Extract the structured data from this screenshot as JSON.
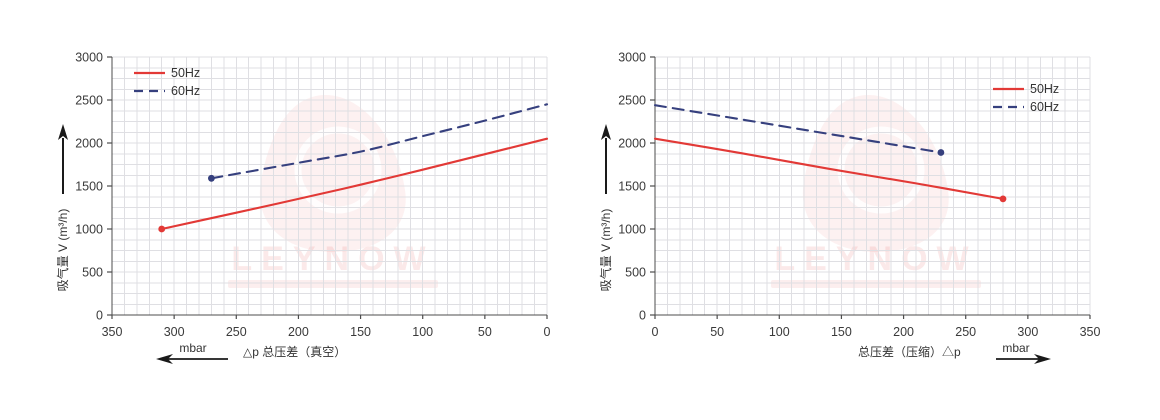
{
  "watermark": {
    "brand": "LEYNOW"
  },
  "layout_colors": {
    "grid": "#dfdfe3",
    "axis": "#4c4c4c",
    "arrow": "#1a1a1a"
  },
  "chart_data": [
    {
      "type": "line",
      "title": "",
      "ylabel": "吸气量 V (m³/h)",
      "xlabel": "△p  总压差（真空）",
      "xunit": "mbar",
      "xunit_arrow": "left",
      "x_direction": "reversed",
      "xlim": [
        350,
        0
      ],
      "ylim": [
        0,
        3000
      ],
      "x_ticks": [
        350,
        300,
        250,
        200,
        150,
        100,
        50,
        0
      ],
      "y_ticks": [
        0,
        500,
        1000,
        1500,
        2000,
        2500,
        3000
      ],
      "grid": true,
      "legend_position": "top-left",
      "series": [
        {
          "name": "50Hz",
          "color": "#e23936",
          "dash": false,
          "marker": "start",
          "points": [
            [
              310,
              1000
            ],
            [
              250,
              1190
            ],
            [
              200,
              1350
            ],
            [
              150,
              1515
            ],
            [
              100,
              1690
            ],
            [
              50,
              1870
            ],
            [
              0,
              2050
            ]
          ]
        },
        {
          "name": "60Hz",
          "color": "#36407e",
          "dash": true,
          "marker": "start",
          "points": [
            [
              270,
              1590
            ],
            [
              200,
              1770
            ],
            [
              150,
              1900
            ],
            [
              100,
              2080
            ],
            [
              50,
              2260
            ],
            [
              0,
              2450
            ]
          ]
        }
      ]
    },
    {
      "type": "line",
      "title": "",
      "ylabel": "吸气量 V (m³/h)",
      "xlabel": "总压差（压缩）△p",
      "xunit": "mbar",
      "xunit_arrow": "right",
      "x_direction": "normal",
      "xlim": [
        0,
        350
      ],
      "ylim": [
        0,
        3000
      ],
      "x_ticks": [
        0,
        50,
        100,
        150,
        200,
        250,
        300,
        350
      ],
      "y_ticks": [
        0,
        500,
        1000,
        1500,
        2000,
        2500,
        3000
      ],
      "grid": true,
      "legend_position": "top-right",
      "series": [
        {
          "name": "50Hz",
          "color": "#e23936",
          "dash": false,
          "marker": "end",
          "points": [
            [
              0,
              2050
            ],
            [
              70,
              1880
            ],
            [
              140,
              1700
            ],
            [
              210,
              1530
            ],
            [
              280,
              1350
            ]
          ]
        },
        {
          "name": "60Hz",
          "color": "#36407e",
          "dash": true,
          "marker": "end",
          "points": [
            [
              0,
              2440
            ],
            [
              115,
              2165
            ],
            [
              230,
              1890
            ]
          ]
        }
      ]
    }
  ]
}
